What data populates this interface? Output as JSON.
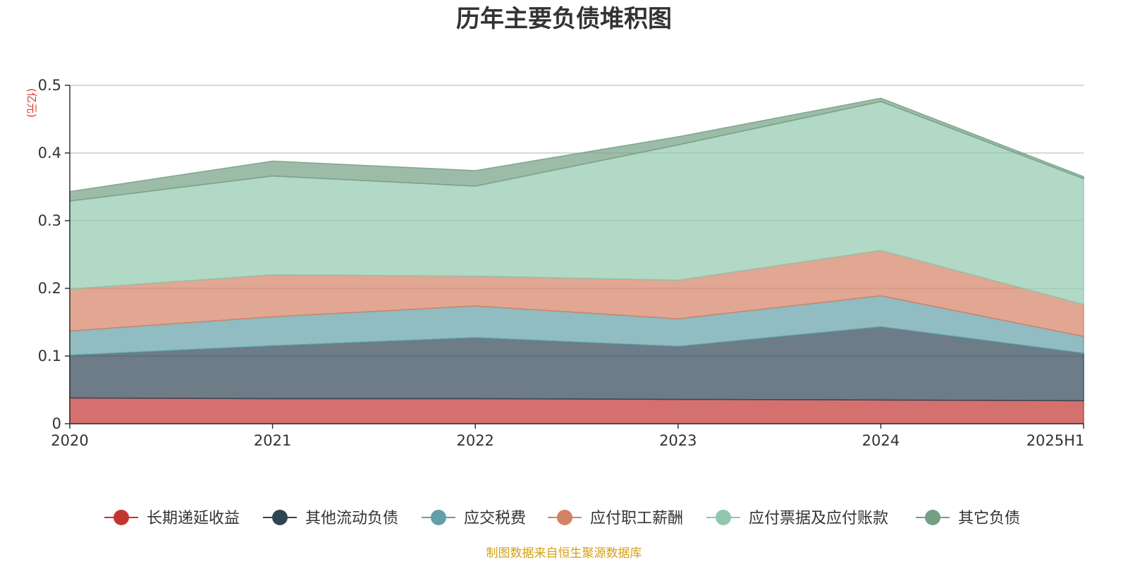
{
  "chart_data": {
    "type": "area",
    "stacked": true,
    "title": "历年主要负债堆积图",
    "unit_label": "(亿元)",
    "x": [
      "2020",
      "2021",
      "2022",
      "2023",
      "2024",
      "2025H1"
    ],
    "y_ticks": [
      "0",
      "0.1",
      "0.2",
      "0.3",
      "0.4",
      "0.5"
    ],
    "ylim": [
      0,
      0.5
    ],
    "grid": true,
    "legend_position": "bottom",
    "series": [
      {
        "name": "长期递延收益",
        "color": "#c23531",
        "values": [
          0.038,
          0.037,
          0.037,
          0.036,
          0.035,
          0.034
        ]
      },
      {
        "name": "其他流动负债",
        "color": "#2f4554",
        "values": [
          0.063,
          0.078,
          0.09,
          0.078,
          0.108,
          0.07
        ]
      },
      {
        "name": "应交税费",
        "color": "#61a0a8",
        "values": [
          0.036,
          0.043,
          0.047,
          0.041,
          0.046,
          0.025
        ]
      },
      {
        "name": "应付职工薪酬",
        "color": "#d48265",
        "values": [
          0.062,
          0.062,
          0.044,
          0.057,
          0.067,
          0.047
        ]
      },
      {
        "name": "应付票据及应付账款",
        "color": "#91c7ae",
        "values": [
          0.13,
          0.146,
          0.133,
          0.2,
          0.22,
          0.186
        ]
      },
      {
        "name": "其它负债",
        "color": "#749f83",
        "values": [
          0.014,
          0.022,
          0.023,
          0.012,
          0.005,
          0.003
        ]
      }
    ]
  },
  "source_note": "制图数据来自恒生聚源数据库"
}
